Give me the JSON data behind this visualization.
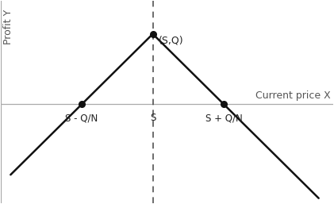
{
  "title": "",
  "xlabel": "Current price X",
  "ylabel": "Profit Y",
  "background_color": "#ffffff",
  "S": 0,
  "Q_N": 1.5,
  "peak_y": 1.5,
  "line_color": "#111111",
  "dot_color": "#111111",
  "axis_color": "#aaaaaa",
  "dashed_color": "#444444",
  "xlabel_fontsize": 9,
  "ylabel_fontsize": 9,
  "annotation_fontsize": 9,
  "tick_label_fontsize": 8.5,
  "xlim": [
    -3.2,
    3.8
  ],
  "ylim": [
    -2.1,
    2.2
  ],
  "left_axis_x": -3.2,
  "left_ext_x": -3.0,
  "right_ext_x": 3.5
}
